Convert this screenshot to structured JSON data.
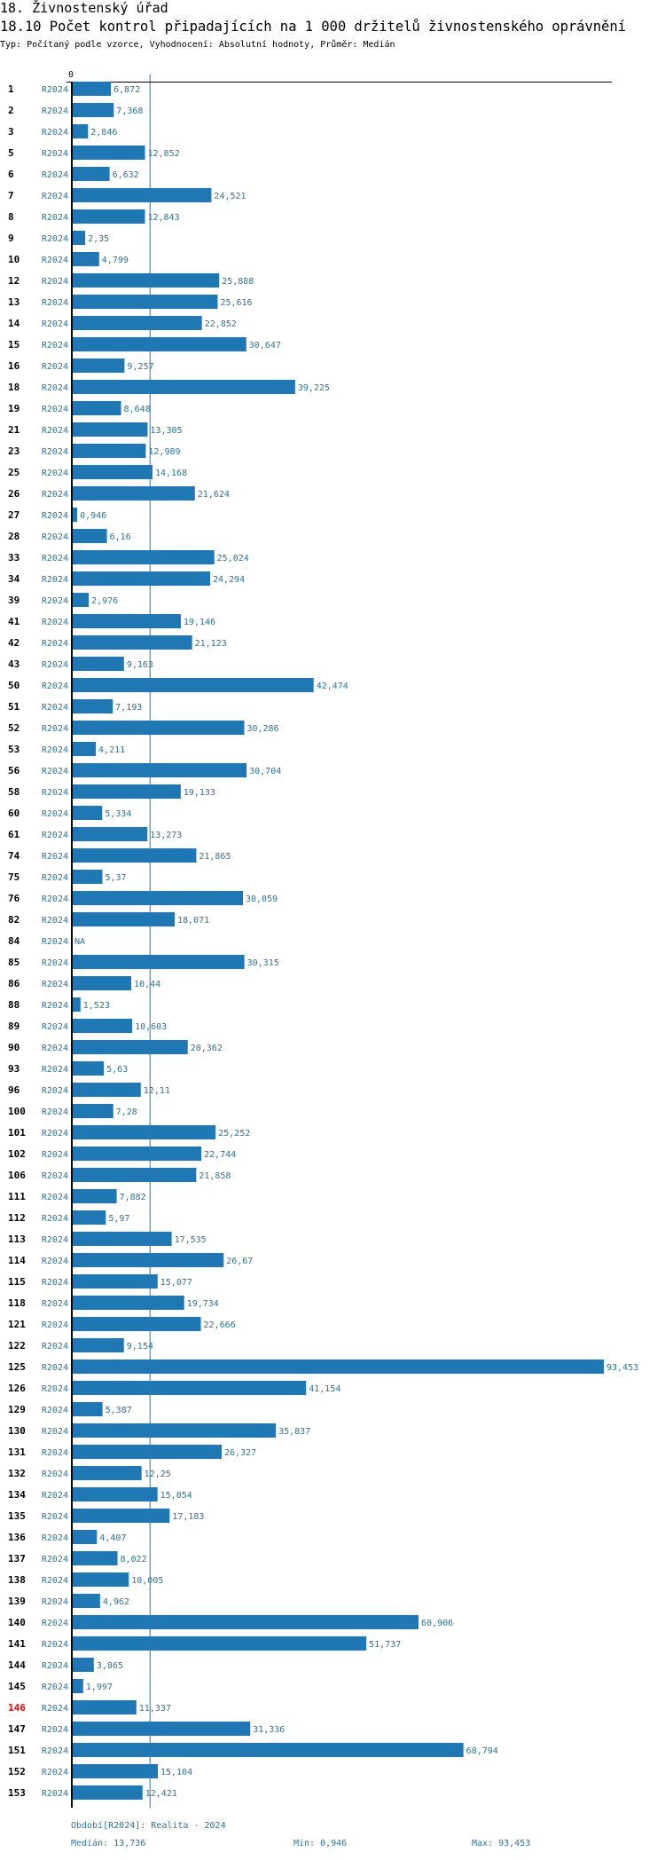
{
  "section_title": "18. Živnostenský úřad",
  "chart_title": "18.10 Počet kontrol připadajících na 1 000 držitelů živnostenského oprávnění",
  "subtitle": "Typ: Počítaný podle vzorce, Vyhodnocení: Absolutní hodnoty, Průměr: Medián",
  "colors": {
    "bar": "#1f77b4",
    "highlight_label": "#ff0000",
    "label": "#000000"
  },
  "chart_data": {
    "type": "bar",
    "orientation": "horizontal",
    "x_tick_labels": [
      "0"
    ],
    "xlim": [
      0,
      93.453
    ],
    "period_label": "R2024",
    "median": 13.736,
    "highlighted_category": "146",
    "categories": [
      "1",
      "2",
      "3",
      "5",
      "6",
      "7",
      "8",
      "9",
      "10",
      "12",
      "13",
      "14",
      "15",
      "16",
      "18",
      "19",
      "21",
      "23",
      "25",
      "26",
      "27",
      "28",
      "33",
      "34",
      "39",
      "41",
      "42",
      "43",
      "50",
      "51",
      "52",
      "53",
      "56",
      "58",
      "60",
      "61",
      "74",
      "75",
      "76",
      "82",
      "84",
      "85",
      "86",
      "88",
      "89",
      "90",
      "93",
      "96",
      "100",
      "101",
      "102",
      "106",
      "111",
      "112",
      "113",
      "114",
      "115",
      "118",
      "121",
      "122",
      "125",
      "126",
      "129",
      "130",
      "131",
      "132",
      "134",
      "135",
      "136",
      "137",
      "138",
      "139",
      "140",
      "141",
      "144",
      "145",
      "146",
      "147",
      "151",
      "152",
      "153"
    ],
    "values": [
      6.872,
      7.368,
      2.846,
      12.852,
      6.632,
      24.521,
      12.843,
      2.35,
      4.799,
      25.888,
      25.616,
      22.852,
      30.647,
      9.257,
      39.225,
      8.648,
      13.305,
      12.989,
      14.168,
      21.624,
      0.946,
      6.16,
      25.024,
      24.294,
      2.976,
      19.146,
      21.123,
      9.163,
      42.474,
      7.193,
      30.286,
      4.211,
      30.704,
      19.133,
      5.334,
      13.273,
      21.865,
      5.37,
      30.059,
      18.071,
      null,
      30.315,
      10.44,
      1.523,
      10.603,
      20.362,
      5.63,
      12.11,
      7.28,
      25.252,
      22.744,
      21.858,
      7.882,
      5.97,
      17.535,
      26.67,
      15.077,
      19.734,
      22.666,
      9.154,
      93.453,
      41.154,
      5.387,
      35.837,
      26.327,
      12.25,
      15.054,
      17.183,
      4.407,
      8.022,
      10.005,
      4.962,
      60.906,
      51.737,
      3.865,
      1.997,
      11.337,
      31.336,
      68.794,
      15.104,
      12.421
    ],
    "value_labels": [
      "6,872",
      "7,368",
      "2,846",
      "12,852",
      "6,632",
      "24,521",
      "12,843",
      "2,35",
      "4,799",
      "25,888",
      "25,616",
      "22,852",
      "30,647",
      "9,257",
      "39,225",
      "8,648",
      "13,305",
      "12,989",
      "14,168",
      "21,624",
      "0,946",
      "6,16",
      "25,024",
      "24,294",
      "2,976",
      "19,146",
      "21,123",
      "9,163",
      "42,474",
      "7,193",
      "30,286",
      "4,211",
      "30,704",
      "19,133",
      "5,334",
      "13,273",
      "21,865",
      "5,37",
      "30,059",
      "18,071",
      "NA",
      "30,315",
      "10,44",
      "1,523",
      "10,603",
      "20,362",
      "5,63",
      "12,11",
      "7,28",
      "25,252",
      "22,744",
      "21,858",
      "7,882",
      "5,97",
      "17,535",
      "26,67",
      "15,077",
      "19,734",
      "22,666",
      "9,154",
      "93,453",
      "41,154",
      "5,387",
      "35,837",
      "26,327",
      "12,25",
      "15,054",
      "17,183",
      "4,407",
      "8,022",
      "10,005",
      "4,962",
      "60,906",
      "51,737",
      "3,865",
      "1,997",
      "11,337",
      "31,336",
      "68,794",
      "15,104",
      "12,421"
    ]
  },
  "footer": {
    "period_legend": "Období[R2024]: Realita - 2024",
    "median": "Medián: 13,736",
    "min": "Min: 0,946",
    "max": "Max: 93,453"
  }
}
